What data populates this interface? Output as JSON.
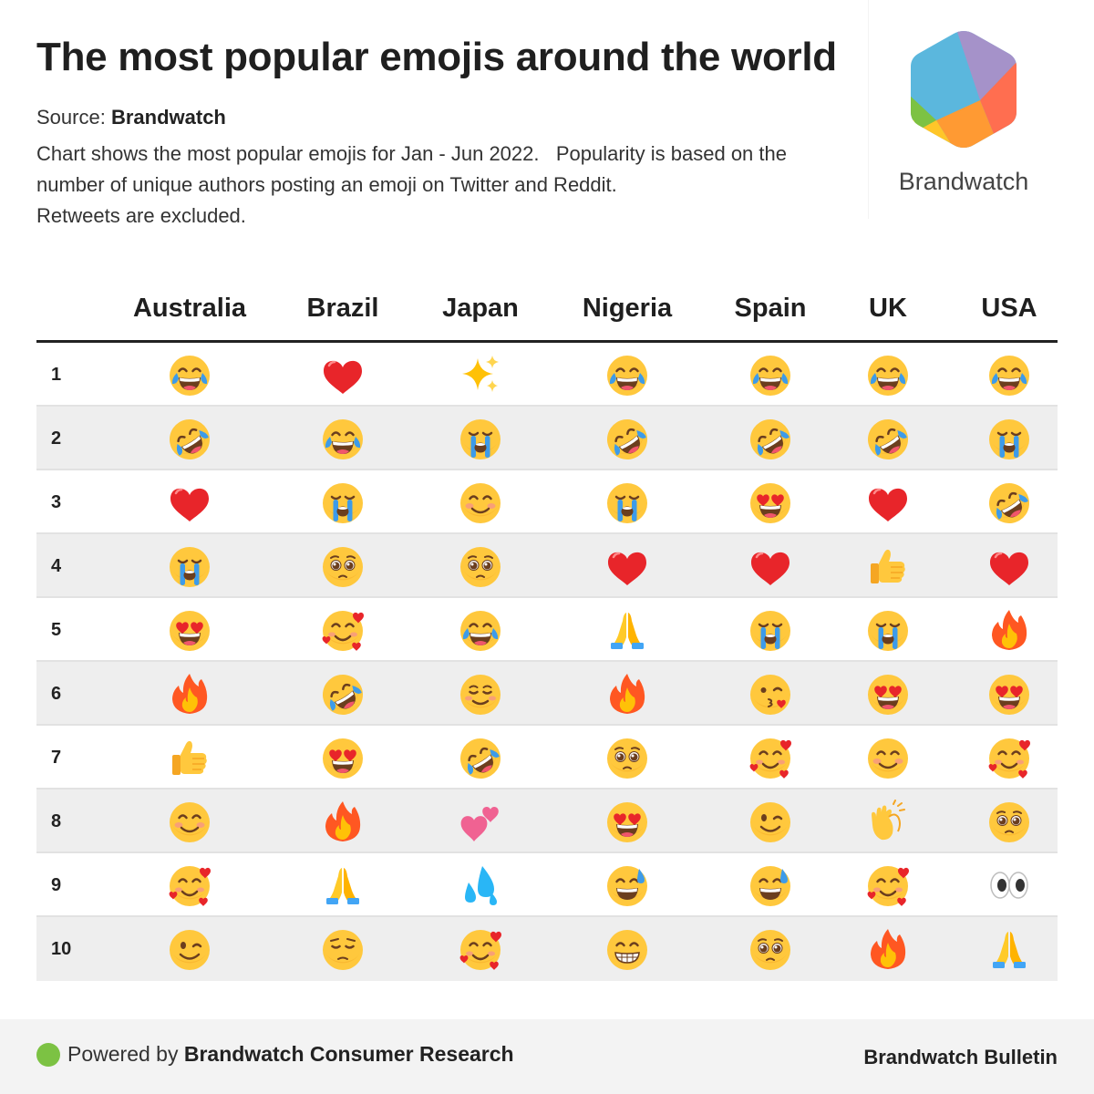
{
  "header": {
    "title": "The most popular emojis around the world",
    "source_label": "Source:",
    "source_name": "Brandwatch",
    "description_lines": [
      "Chart shows the most popular emojis for Jan - Jun 2022.   Popularity is based on the",
      "number of unique authors posting an emoji on Twitter and Reddit.",
      "Retweets are excluded."
    ]
  },
  "logo": {
    "wordmark": "Brandwatch",
    "colors": [
      "#5bb7dd",
      "#a592c9",
      "#ff6e50",
      "#ff9a33",
      "#ffc629",
      "#7cc243"
    ]
  },
  "chart_data": {
    "type": "table",
    "columns": [
      "Australia",
      "Brazil",
      "Japan",
      "Nigeria",
      "Spain",
      "UK",
      "USA"
    ],
    "ranks": [
      "1",
      "2",
      "3",
      "4",
      "5",
      "6",
      "7",
      "8",
      "9",
      "10"
    ],
    "rows": [
      [
        "joy",
        "red-heart",
        "sparkles",
        "joy",
        "joy",
        "joy",
        "joy"
      ],
      [
        "rofl",
        "joy",
        "sob",
        "rofl",
        "rofl",
        "rofl",
        "sob"
      ],
      [
        "red-heart",
        "sob",
        "blush",
        "sob",
        "heart-eyes",
        "red-heart",
        "rofl"
      ],
      [
        "sob",
        "pleading",
        "pleading",
        "red-heart",
        "red-heart",
        "thumbs-up",
        "red-heart"
      ],
      [
        "heart-eyes",
        "smiling-hearts",
        "joy",
        "folded-hands",
        "sob",
        "sob",
        "fire"
      ],
      [
        "fire",
        "rofl",
        "relaxed",
        "fire",
        "kissing-heart",
        "heart-eyes",
        "heart-eyes"
      ],
      [
        "thumbs-up",
        "heart-eyes",
        "rofl",
        "pleading",
        "smiling-hearts",
        "blush",
        "smiling-hearts"
      ],
      [
        "blush",
        "fire",
        "two-hearts",
        "heart-eyes",
        "wink",
        "clapping-hands",
        "pleading"
      ],
      [
        "smiling-hearts",
        "folded-hands",
        "sweat-droplets",
        "sweat-smile",
        "sweat-smile",
        "smiling-hearts",
        "eyes"
      ],
      [
        "wink",
        "pensive",
        "smiling-hearts",
        "grin",
        "pleading",
        "fire",
        "folded-hands"
      ]
    ]
  },
  "footer": {
    "powered_label": "Powered by",
    "powered_name": "Brandwatch Consumer Research",
    "right_label": "Brandwatch Bulletin",
    "dot_color": "#7cc243"
  }
}
